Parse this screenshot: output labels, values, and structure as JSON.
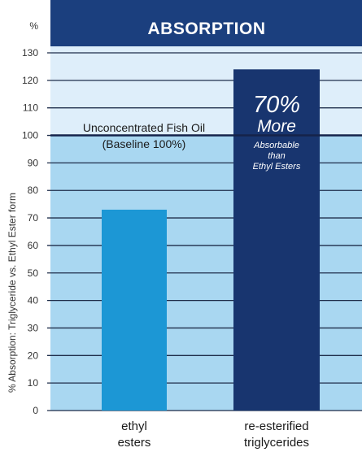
{
  "chart_data": {
    "type": "bar",
    "title": "ABSORPTION",
    "ylabel": "% Absorption: Triglyceride vs. Ethyl Ester form",
    "yunit": "%",
    "ylim": [
      0,
      130
    ],
    "yticks": [
      0,
      10,
      20,
      30,
      40,
      50,
      60,
      70,
      80,
      90,
      100,
      110,
      120,
      130
    ],
    "grid": true,
    "categories": [
      "ethyl esters",
      "re-esterified triglycerides"
    ],
    "category_lines": [
      [
        "ethyl",
        "esters"
      ],
      [
        "re-esterified",
        "triglycerides"
      ]
    ],
    "values": [
      73,
      124
    ],
    "baseline": {
      "value": 100,
      "label_line1": "Unconcentrated Fish Oil",
      "label_line2": "(Baseline 100%)"
    },
    "bar_annotation": {
      "big1": "70%",
      "big2": "More",
      "small1": "Absorbable",
      "small2": "than",
      "small3": "Ethyl Esters"
    },
    "colors": {
      "header": "#1b3f7e",
      "plot_upper": "#deeefa",
      "plot_lower": "#a9d7f1",
      "bar_ethyl": "#1c97d5",
      "bar_triglyceride": "#18356f",
      "gridline": "#1e2d4a",
      "baseline": "#15234a"
    }
  }
}
